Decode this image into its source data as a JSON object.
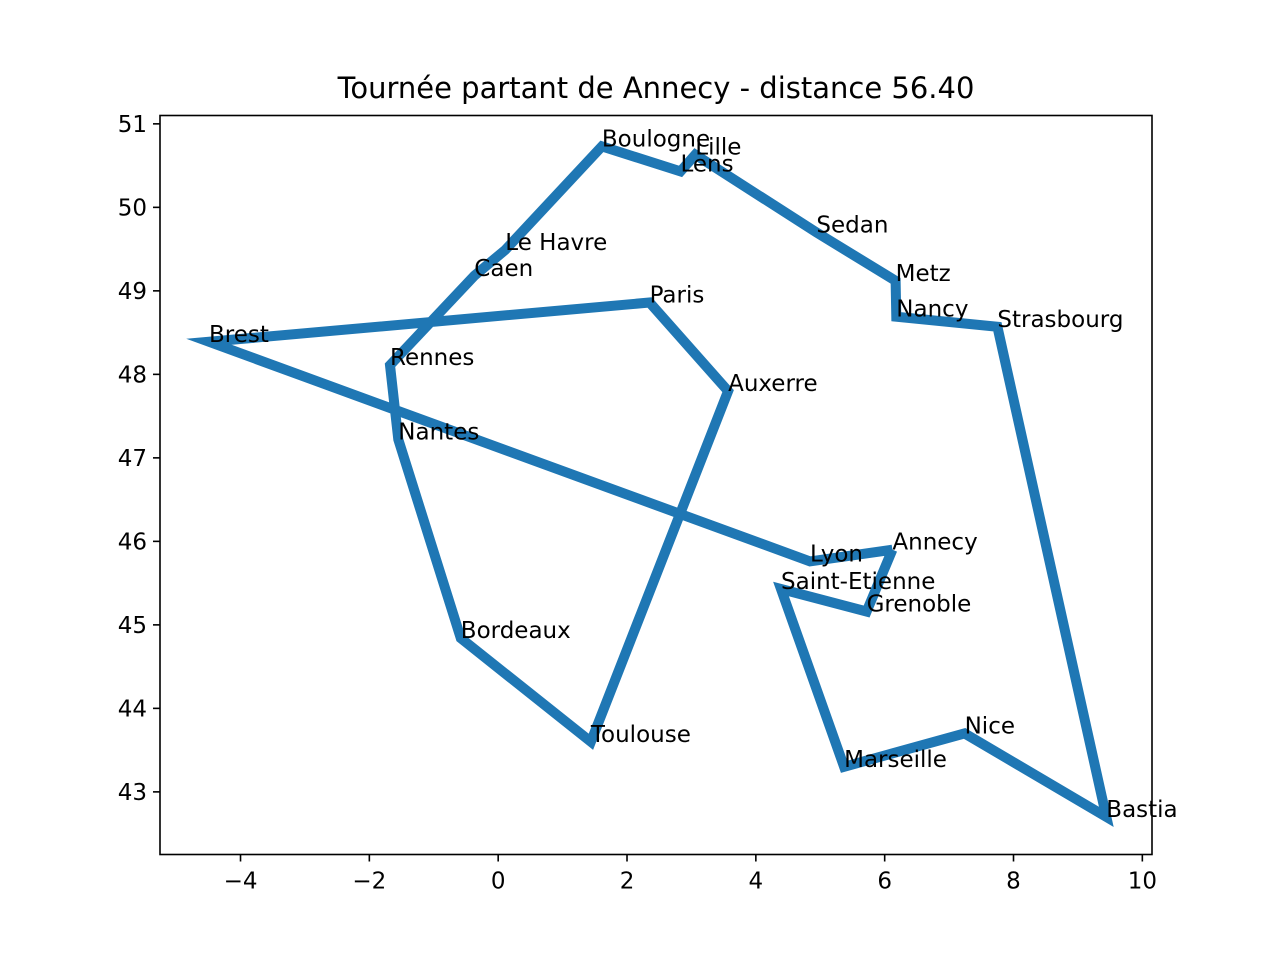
{
  "chart_data": {
    "type": "line",
    "title": "Tournée partant de Annecy - distance 56.40",
    "xlabel": "",
    "ylabel": "",
    "xlim": [
      -5.25,
      10.15
    ],
    "ylim": [
      42.25,
      51.1
    ],
    "xticks": [
      -4,
      -2,
      0,
      2,
      4,
      6,
      8,
      10
    ],
    "xtick_labels": [
      "−4",
      "−2",
      "0",
      "2",
      "4",
      "6",
      "8",
      "10"
    ],
    "yticks": [
      43,
      44,
      45,
      46,
      47,
      48,
      49,
      50,
      51
    ],
    "ytick_labels": [
      "43",
      "44",
      "45",
      "46",
      "47",
      "48",
      "49",
      "50",
      "51"
    ],
    "grid": false,
    "line_color": "#1f77b4",
    "series": [
      {
        "points": [
          {
            "name": "Annecy",
            "x": 6.12,
            "y": 45.9
          },
          {
            "name": "Grenoble",
            "x": 5.72,
            "y": 45.16
          },
          {
            "name": "Saint-Etienne",
            "x": 4.39,
            "y": 45.43
          },
          {
            "name": "Marseille",
            "x": 5.37,
            "y": 43.3
          },
          {
            "name": "Nice",
            "x": 7.24,
            "y": 43.7
          },
          {
            "name": "Bastia",
            "x": 9.44,
            "y": 42.7
          },
          {
            "name": "Strasbourg",
            "x": 7.75,
            "y": 48.57
          },
          {
            "name": "Nancy",
            "x": 6.18,
            "y": 48.69
          },
          {
            "name": "Metz",
            "x": 6.17,
            "y": 49.12
          },
          {
            "name": "Sedan",
            "x": 4.94,
            "y": 49.7
          },
          {
            "name": "Lille",
            "x": 3.06,
            "y": 50.63
          },
          {
            "name": "Lens",
            "x": 2.83,
            "y": 50.43
          },
          {
            "name": "Boulogne",
            "x": 1.61,
            "y": 50.73
          },
          {
            "name": "Le Havre",
            "x": 0.11,
            "y": 49.49
          },
          {
            "name": "Caen",
            "x": -0.37,
            "y": 49.18
          },
          {
            "name": "Rennes",
            "x": -1.68,
            "y": 48.11
          },
          {
            "name": "Nantes",
            "x": -1.55,
            "y": 47.22
          },
          {
            "name": "Bordeaux",
            "x": -0.58,
            "y": 44.84
          },
          {
            "name": "Toulouse",
            "x": 1.44,
            "y": 43.6
          },
          {
            "name": "Auxerre",
            "x": 3.57,
            "y": 47.8
          },
          {
            "name": "Paris",
            "x": 2.35,
            "y": 48.86
          },
          {
            "name": "Brest",
            "x": -4.49,
            "y": 48.39
          },
          {
            "name": "Lyon",
            "x": 4.84,
            "y": 45.76
          },
          {
            "name": "Annecy",
            "x": 6.12,
            "y": 45.9
          }
        ]
      }
    ]
  }
}
